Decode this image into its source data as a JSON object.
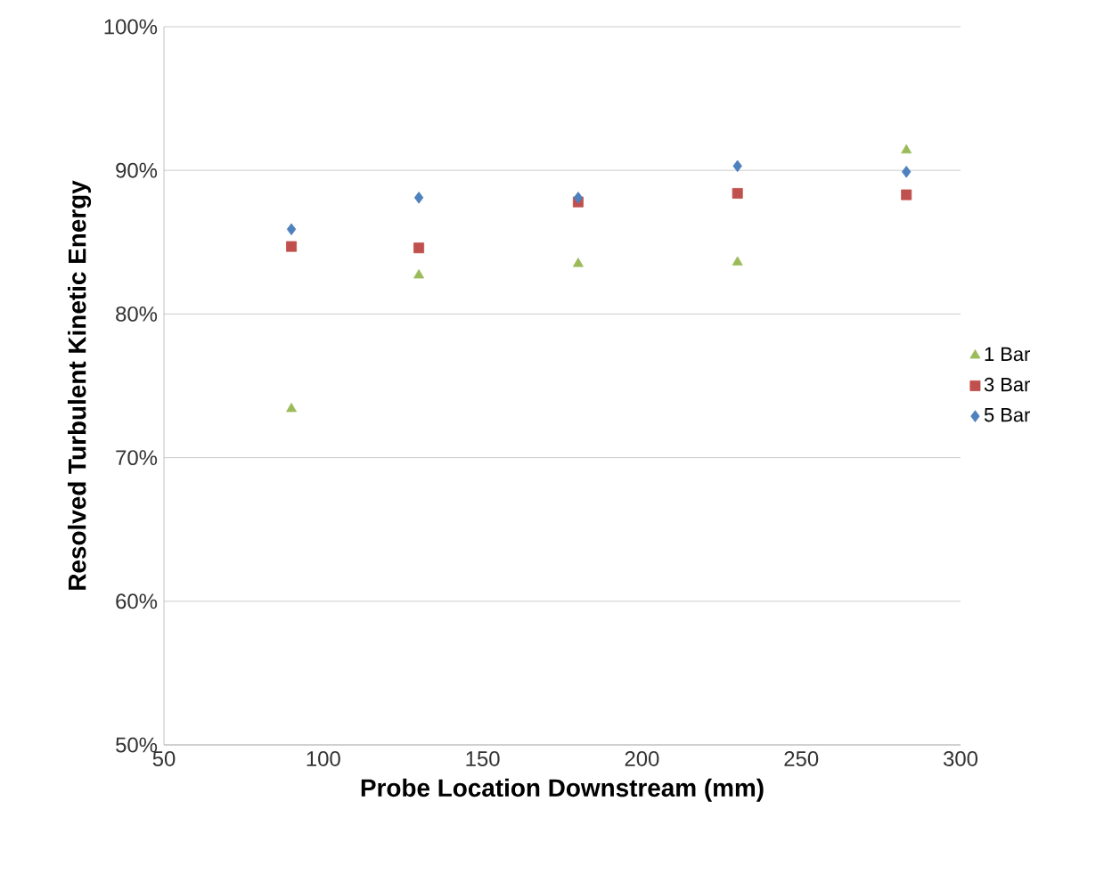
{
  "chart_data": {
    "type": "scatter",
    "xlabel": "Probe Location Downstream  (mm)",
    "ylabel": "Resolved Turbulent Kinetic Energy",
    "x": [
      90,
      130,
      180,
      230,
      283
    ],
    "series": [
      {
        "name": "1 Bar",
        "color": "#9bbb59",
        "marker": "triangle",
        "values": [
          73.4,
          82.7,
          83.5,
          83.6,
          91.4
        ]
      },
      {
        "name": "3 Bar",
        "color": "#c0504d",
        "marker": "square",
        "values": [
          84.7,
          84.6,
          87.8,
          88.4,
          88.3
        ]
      },
      {
        "name": "5 Bar",
        "color": "#4f81bd",
        "marker": "diamond",
        "values": [
          85.9,
          88.1,
          88.1,
          90.3,
          89.9
        ]
      }
    ],
    "xlim": [
      50,
      300
    ],
    "xticks": [
      50,
      100,
      150,
      200,
      250,
      300
    ],
    "ylim": [
      50,
      100
    ],
    "yticks": [
      {
        "value": 50,
        "label": "50%"
      },
      {
        "value": 60,
        "label": "60%"
      },
      {
        "value": 70,
        "label": "70%"
      },
      {
        "value": 80,
        "label": "80%"
      },
      {
        "value": 90,
        "label": "90%"
      },
      {
        "value": 100,
        "label": "100%"
      }
    ],
    "grid": "y",
    "legend": "right"
  }
}
